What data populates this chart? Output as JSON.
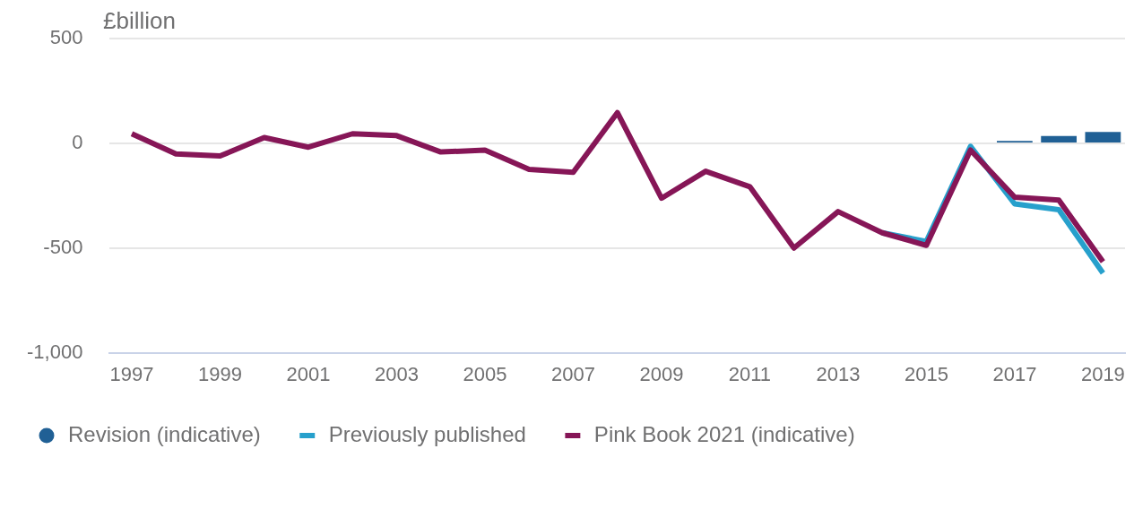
{
  "chart_data": {
    "type": "line",
    "ylabel": "£billion",
    "categories": [
      "1997",
      null,
      "1999",
      null,
      "2001",
      null,
      "2003",
      null,
      "2005",
      null,
      "2007",
      null,
      "2009",
      null,
      "2011",
      null,
      "2013",
      null,
      "2015",
      null,
      "2017",
      null,
      "2019"
    ],
    "ylim": [
      -1000,
      500
    ],
    "yticks": [
      {
        "value": -1000,
        "label": "-1,000"
      },
      -500,
      0,
      500
    ],
    "grid": "y",
    "legend": "bottom",
    "marker": "none",
    "series": [
      {
        "name": "Revision (indicative)",
        "type": "bar",
        "color": "#206095",
        "values": [
          null,
          null,
          null,
          null,
          null,
          null,
          null,
          null,
          null,
          null,
          null,
          null,
          null,
          null,
          null,
          null,
          null,
          null,
          null,
          null,
          12,
          35,
          55
        ]
      },
      {
        "name": "Previously published",
        "color": "#27a0cc",
        "values": [
          null,
          null,
          null,
          null,
          null,
          null,
          null,
          null,
          null,
          null,
          null,
          null,
          null,
          null,
          null,
          null,
          null,
          -427,
          -468,
          -14,
          -289,
          -317,
          -620
        ]
      },
      {
        "name": "Pink Book 2021 (indicative)",
        "color": "#861657",
        "values": [
          46,
          -50,
          -60,
          28,
          -18,
          46,
          37,
          -41,
          -32,
          -124,
          -138,
          147,
          -262,
          -133,
          -207,
          -500,
          -326,
          -427,
          -487,
          -32,
          -257,
          -271,
          -565
        ]
      }
    ]
  }
}
